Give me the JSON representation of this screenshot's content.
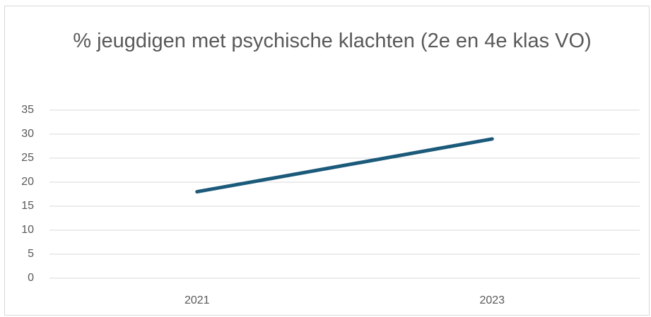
{
  "chart_data": {
    "type": "line",
    "title": "% jeugdigen met psychische klachten (2e en 4e klas VO)",
    "categories": [
      "2021",
      "2023"
    ],
    "values": [
      18,
      29
    ],
    "color": "#1b5a7a",
    "ylim": [
      0,
      35
    ],
    "yticks": [
      0,
      5,
      10,
      15,
      20,
      25,
      30,
      35
    ],
    "grid": true
  }
}
